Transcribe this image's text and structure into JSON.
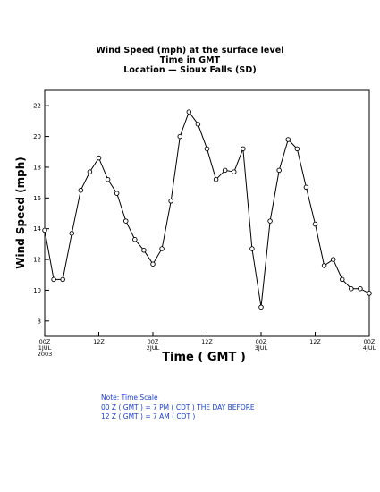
{
  "title_lines": [
    "Wind Speed (mph) at the surface level",
    "Time in GMT",
    "Location — Sioux Falls (SD)"
  ],
  "note_lines": [
    "Note: Time Scale",
    "00 Z ( GMT ) = 7 PM ( CDT ) THE DAY BEFORE",
    "12 Z ( GMT ) = 7 AM ( CDT )"
  ],
  "colors": {
    "note": "#1a3fcf",
    "line": "#000000"
  },
  "chart_data": {
    "type": "line",
    "title": "Wind Speed (mph) at the surface level",
    "subtitle": "Time in GMT / Location — Sioux Falls (SD)",
    "xlabel": "Time ( GMT )",
    "ylabel": "Wind Speed (mph)",
    "ylim": [
      7,
      23
    ],
    "xlim_hours": [
      0,
      72
    ],
    "grid": false,
    "yticks": [
      8,
      10,
      12,
      14,
      16,
      18,
      20,
      22
    ],
    "xticks": [
      {
        "hour": 0,
        "label": "00Z",
        "sub": "1JUL",
        "sub2": "2003"
      },
      {
        "hour": 12,
        "label": "12Z",
        "sub": "",
        "sub2": ""
      },
      {
        "hour": 24,
        "label": "00Z",
        "sub": "2JUL",
        "sub2": ""
      },
      {
        "hour": 36,
        "label": "12Z",
        "sub": "",
        "sub2": ""
      },
      {
        "hour": 48,
        "label": "00Z",
        "sub": "3JUL",
        "sub2": ""
      },
      {
        "hour": 60,
        "label": "12Z",
        "sub": "",
        "sub2": ""
      },
      {
        "hour": 72,
        "label": "00Z",
        "sub": "4JUL",
        "sub2": ""
      }
    ],
    "series": [
      {
        "x": [
          0,
          2,
          4,
          6,
          8,
          10,
          12,
          14,
          16,
          18,
          20,
          22,
          24,
          26,
          28,
          30,
          32,
          34,
          36,
          38,
          40,
          42,
          44,
          46,
          48,
          50,
          52,
          54,
          56,
          58,
          60,
          62,
          64,
          66,
          68,
          70,
          72
        ],
        "values": [
          13.9,
          10.7,
          10.7,
          13.7,
          16.5,
          17.7,
          18.6,
          17.2,
          16.3,
          14.5,
          13.3,
          12.6,
          11.7,
          12.7,
          15.8,
          20.0,
          21.6,
          20.8,
          19.2,
          17.2,
          17.8,
          17.7,
          19.2,
          12.7,
          8.9,
          14.5,
          17.8,
          19.8,
          19.2,
          16.7,
          14.3,
          11.6,
          12.0,
          10.7,
          10.1,
          10.1,
          9.8
        ]
      }
    ]
  }
}
